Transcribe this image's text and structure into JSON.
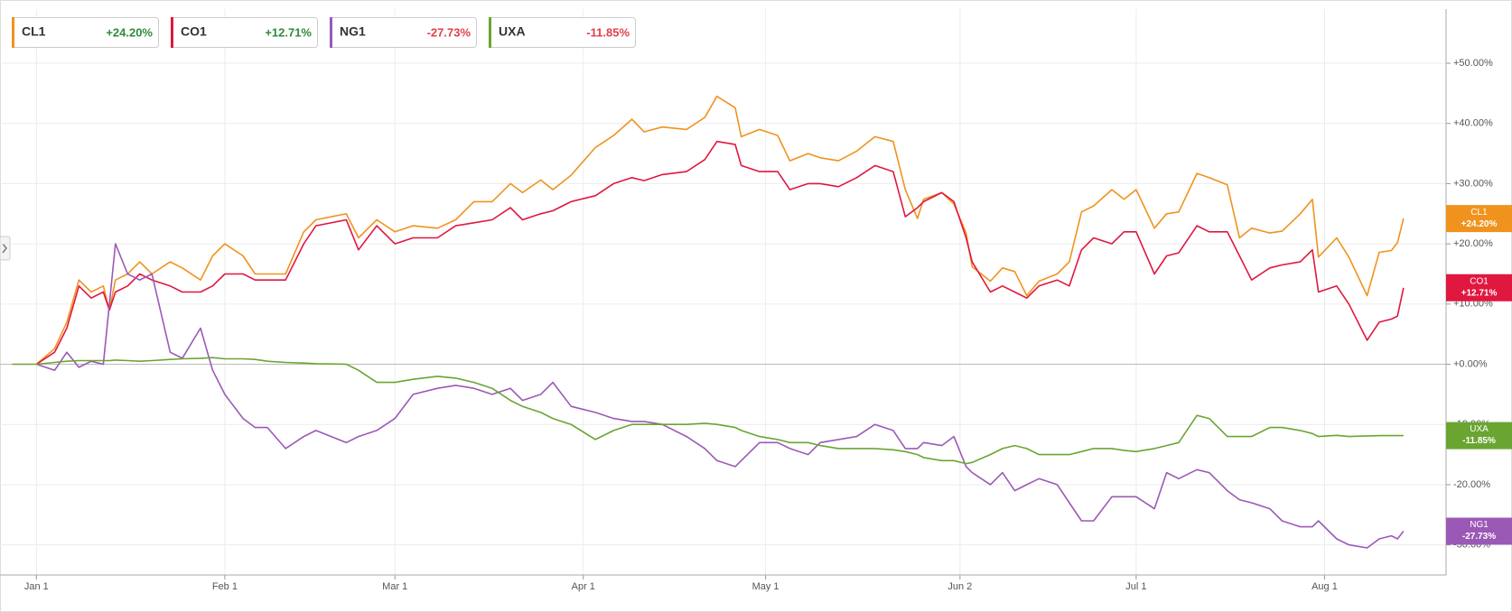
{
  "chart_data": {
    "type": "line",
    "x": [
      -4,
      0,
      3,
      5,
      7,
      9,
      11,
      12,
      13,
      15,
      17,
      19,
      22,
      24,
      27,
      29,
      31,
      34,
      36,
      38,
      41,
      44,
      46,
      51,
      53,
      56,
      59,
      62,
      66,
      69,
      72,
      75,
      78,
      80,
      83,
      85,
      88,
      92,
      95,
      98,
      100,
      103,
      107,
      110,
      112,
      115,
      116,
      119,
      122,
      124,
      127,
      129,
      132,
      135,
      138,
      141,
      143,
      145,
      146,
      149,
      151,
      153,
      154,
      157,
      159,
      161,
      163,
      165,
      168,
      170,
      172,
      174,
      177,
      179,
      181,
      184,
      186,
      188,
      191,
      193,
      196,
      198,
      200,
      203,
      205,
      208,
      210,
      211,
      214,
      216,
      219,
      221,
      223,
      224,
      225
    ],
    "xlim": [
      -6,
      232
    ],
    "xticks": [
      {
        "value": 0,
        "label": "Jan 1"
      },
      {
        "value": 31,
        "label": "Feb 1"
      },
      {
        "value": 59,
        "label": "Mar 1"
      },
      {
        "value": 90,
        "label": "Apr 1"
      },
      {
        "value": 120,
        "label": "May 1"
      },
      {
        "value": 152,
        "label": "Jun 2"
      },
      {
        "value": 181,
        "label": "Jul 1"
      },
      {
        "value": 212,
        "label": "Aug 1"
      }
    ],
    "ylim": [
      -35,
      59
    ],
    "yticks": [
      {
        "value": -30,
        "label": "-30.00%"
      },
      {
        "value": -20,
        "label": "-20.00%"
      },
      {
        "value": -10,
        "label": "-10.00%"
      },
      {
        "value": 0,
        "label": "+0.00%"
      },
      {
        "value": 10,
        "label": "+10.00%"
      },
      {
        "value": 20,
        "label": "+20.00%"
      },
      {
        "value": 30,
        "label": "+30.00%"
      },
      {
        "value": 40,
        "label": "+40.00%"
      },
      {
        "value": 50,
        "label": "+50.00%"
      }
    ],
    "grid": true,
    "series": [
      {
        "name": "CL1",
        "color": "#f0931e",
        "change": "+24.20%",
        "values": [
          null,
          0,
          2.6,
          7,
          14,
          12,
          13,
          9,
          14,
          15,
          17,
          15,
          17,
          16,
          14,
          18,
          20,
          18,
          15,
          15,
          15,
          22,
          24,
          25,
          21,
          24,
          22,
          23,
          22.6,
          24,
          27,
          27,
          30,
          28.5,
          30.6,
          29,
          31.4,
          36,
          38,
          40.7,
          38.6,
          39.4,
          39,
          41,
          44.5,
          42.6,
          37.8,
          39,
          38,
          33.8,
          35,
          34.3,
          33.8,
          35.4,
          37.8,
          37,
          29,
          24.2,
          27.4,
          28.5,
          26.6,
          21.8,
          16.2,
          13.8,
          16,
          15.4,
          11.4,
          13.8,
          15,
          17,
          25.3,
          26.3,
          29,
          27.4,
          29,
          22.6,
          25,
          25.3,
          31.7,
          31,
          29.8,
          21,
          22.6,
          21.8,
          22.1,
          25,
          27.4,
          17.8,
          21,
          17.8,
          11.4,
          18.6,
          18.9,
          20.2,
          24.2
        ]
      },
      {
        "name": "CO1",
        "color": "#e0173f",
        "change": "+12.71%",
        "values": [
          null,
          0,
          2,
          6,
          13,
          11,
          12,
          9,
          12,
          13,
          15,
          14,
          13,
          12,
          12,
          13,
          15,
          15,
          14,
          14,
          14,
          20,
          23,
          24,
          19,
          23,
          20,
          21,
          21,
          23,
          23.5,
          24,
          26,
          24,
          25,
          25.5,
          27,
          28,
          30,
          31,
          30.5,
          31.5,
          32,
          34,
          37,
          36.5,
          33,
          32,
          32,
          29,
          30,
          30,
          29.5,
          31,
          33,
          32,
          24.5,
          26,
          27,
          28.5,
          27,
          21,
          17,
          12,
          13,
          12,
          11,
          13,
          14,
          13,
          19,
          21,
          20,
          22,
          22,
          15,
          18,
          18.5,
          23,
          22,
          22,
          18,
          14,
          16,
          16.5,
          17,
          19,
          12,
          13,
          10,
          4,
          7,
          7.5,
          8,
          12.71
        ]
      },
      {
        "name": "NG1",
        "color": "#9b59b6",
        "change": "-27.73%",
        "values": [
          null,
          0,
          -1,
          2,
          -0.5,
          0.5,
          0,
          10,
          20,
          15,
          14,
          15,
          2,
          1,
          6,
          -1,
          -5,
          -9,
          -10.5,
          -10.5,
          -14,
          -12,
          -11,
          -13,
          -12,
          -11,
          -9,
          -5,
          -4,
          -3.5,
          -4,
          -5,
          -4,
          -6,
          -5,
          -3,
          -7,
          -8,
          -9,
          -9.5,
          -9.5,
          -10,
          -12,
          -14,
          -16,
          -17,
          -16,
          -13,
          -13,
          -14,
          -15,
          -13,
          -12.5,
          -12,
          -10,
          -11,
          -14,
          -14,
          -13,
          -13.5,
          -12,
          -17,
          -18,
          -20,
          -18,
          -21,
          -20,
          -19,
          -20,
          -23,
          -26,
          -26,
          -22,
          -22,
          -22,
          -24,
          -18,
          -19,
          -17.5,
          -18,
          -21,
          -22.5,
          -23,
          -24,
          -26,
          -27,
          -27,
          -26,
          -29,
          -30,
          -30.5,
          -29,
          -28.5,
          -29,
          -27.73
        ]
      },
      {
        "name": "UXA",
        "color": "#6aa532",
        "change": "-11.85%",
        "values": [
          0,
          0,
          0.3,
          0.5,
          0.6,
          0.6,
          0.6,
          0.6,
          0.7,
          0.6,
          0.5,
          0.6,
          0.8,
          0.9,
          1,
          1.1,
          0.9,
          0.9,
          0.8,
          0.5,
          0.3,
          0.2,
          0.1,
          0,
          -1,
          -3,
          -3,
          -2.5,
          -2,
          -2.3,
          -3,
          -4,
          -6,
          -7,
          -8,
          -9,
          -10,
          -12.5,
          -11,
          -10,
          -10,
          -10,
          -10,
          -9.8,
          -10,
          -10.5,
          -11,
          -12,
          -12.5,
          -13,
          -13,
          -13.5,
          -14,
          -14,
          -14,
          -14.2,
          -14.5,
          -15,
          -15.5,
          -16,
          -16,
          -16.5,
          -16.3,
          -15,
          -14,
          -13.5,
          -14,
          -15,
          -15,
          -15,
          -14.5,
          -14,
          -14,
          -14.3,
          -14.5,
          -14,
          -13.5,
          -13,
          -8.5,
          -9,
          -12,
          -12,
          -12,
          -10.5,
          -10.5,
          -11,
          -11.5,
          -12,
          -11.8,
          -12,
          -11.9,
          -11.85,
          -11.85,
          -11.85,
          -11.85
        ]
      }
    ]
  }
}
